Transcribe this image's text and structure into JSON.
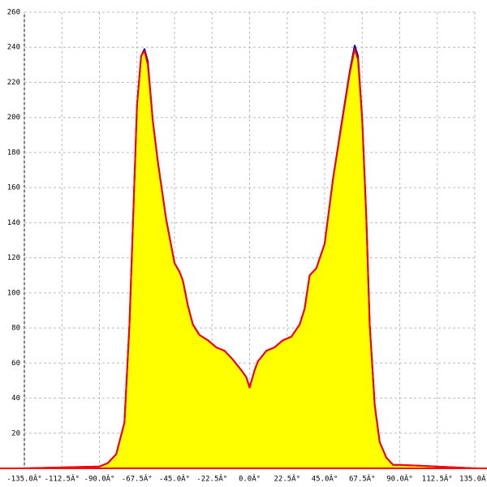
{
  "chart_data": {
    "type": "area-line",
    "x": [
      -135,
      -90,
      -85,
      -80,
      -75,
      -72,
      -70,
      -67.5,
      -65,
      -63,
      -61,
      -58,
      -55,
      -50,
      -45,
      -42,
      -40,
      -37,
      -34,
      -30,
      -25,
      -20,
      -15,
      -10,
      -5,
      -2,
      0,
      3,
      5,
      10,
      15,
      20,
      25,
      30,
      33,
      36,
      40,
      45,
      50,
      55,
      60,
      63,
      65,
      67.5,
      70,
      72,
      75,
      78,
      82,
      86,
      90,
      135
    ],
    "series": [
      {
        "color": "#0000cc",
        "values": [
          0,
          1,
          3,
          8,
          26,
          82,
          137,
          207,
          235,
          239,
          232,
          198,
          175,
          142,
          117,
          112,
          107,
          93,
          82,
          76,
          73,
          69,
          67,
          62,
          56,
          52,
          46,
          56,
          61,
          67,
          69,
          73,
          75,
          82,
          91,
          110,
          114,
          128,
          165,
          196,
          226,
          241,
          235,
          199,
          142,
          82,
          36,
          15,
          6,
          2,
          2,
          0
        ]
      },
      {
        "color": "#ff0000",
        "fill": "#ffff00",
        "values": [
          0,
          1,
          3,
          8,
          26,
          82,
          137,
          207,
          235,
          238,
          230,
          198,
          175,
          142,
          117,
          112,
          107,
          93,
          82,
          76,
          73,
          69,
          67,
          62,
          56,
          52,
          46,
          56,
          61,
          67,
          69,
          73,
          75,
          82,
          91,
          110,
          114,
          128,
          165,
          195,
          225,
          239,
          233,
          198,
          142,
          82,
          36,
          15,
          6,
          2,
          2,
          0
        ]
      }
    ],
    "xlim": [
      -135,
      135
    ],
    "ylim": [
      0,
      260
    ],
    "xticks": [
      {
        "value": -135,
        "label": "-135.0Â°"
      },
      {
        "value": -112.5,
        "label": "-112.5Â°"
      },
      {
        "value": -90,
        "label": "-90.0Â°"
      },
      {
        "value": -67.5,
        "label": "-67.5Â°"
      },
      {
        "value": -45,
        "label": "-45.0Â°"
      },
      {
        "value": -22.5,
        "label": "-22.5Â°"
      },
      {
        "value": 0,
        "label": "0.0Â°"
      },
      {
        "value": 22.5,
        "label": "22.5Â°"
      },
      {
        "value": 45,
        "label": "45.0Â°"
      },
      {
        "value": 67.5,
        "label": "67.5Â°"
      },
      {
        "value": 90,
        "label": "90.0Â°"
      },
      {
        "value": 112.5,
        "label": "112.5Â°"
      },
      {
        "value": 135,
        "label": "135.0Â°"
      }
    ],
    "yticks": [
      20,
      40,
      60,
      80,
      100,
      120,
      140,
      160,
      180,
      200,
      220,
      240,
      260
    ],
    "grid": true
  }
}
